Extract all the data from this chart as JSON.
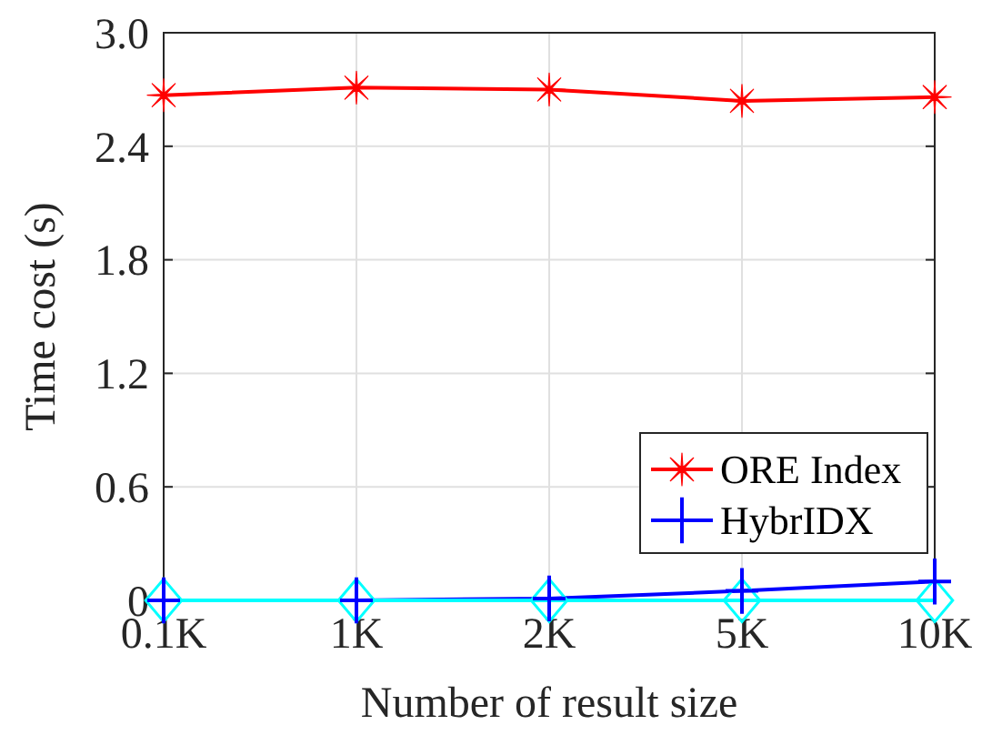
{
  "chart_data": {
    "type": "line",
    "xlabel": "Number of result size",
    "ylabel": "Time cost (s)",
    "categories": [
      "0.1K",
      "1K",
      "2K",
      "5K",
      "10K"
    ],
    "ylim": [
      0,
      3
    ],
    "yticks": [
      0,
      0.6,
      1.2,
      1.8,
      2.4,
      {
        "value": 3,
        "label": "3.0"
      }
    ],
    "grid": true,
    "legend": "right",
    "series": [
      {
        "name": "ORE Index",
        "color": "#ff0000",
        "marker": "star",
        "values": [
          2.67,
          2.71,
          2.7,
          2.64,
          2.66
        ]
      },
      {
        "name": "HybrIDX",
        "color": "#0000ff",
        "marker": "cross",
        "values": [
          0,
          0,
          0.01,
          0.05,
          0.1
        ]
      },
      {
        "color": "#00ffff",
        "marker": "diamond",
        "values": [
          0,
          0,
          0,
          0,
          0
        ]
      }
    ]
  }
}
